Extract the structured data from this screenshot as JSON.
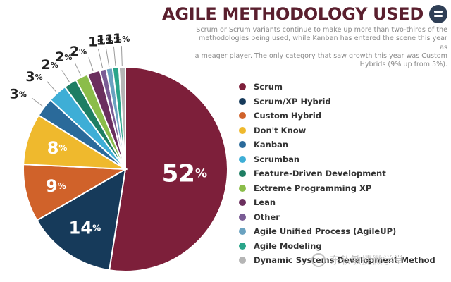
{
  "header": {
    "title": "AGILE METHODOLOGY USED",
    "subtitle_lines": [
      "Scrum or Scrum variants continue to make up more than two-thirds of the",
      "methodologies being used, while Kanban has entered the scene this year as",
      "a meager player. The only category that saw growth this year was Custom",
      "Hybrids (9% up from 5%)."
    ]
  },
  "logo_icon": "document-icon",
  "watermark": {
    "icon": "chat-bubble-icon",
    "text": "东软敏捷微学堂"
  },
  "chart_data": {
    "type": "pie",
    "title": "AGILE METHODOLOGY USED",
    "unit": "%",
    "slices": [
      {
        "label": "Scrum",
        "value": 52,
        "color": "#7d1f3a"
      },
      {
        "label": "Scrum/XP Hybrid",
        "value": 14,
        "color": "#163a5a"
      },
      {
        "label": "Custom Hybrid",
        "value": 9,
        "color": "#d0622a"
      },
      {
        "label": "Don't Know",
        "value": 8,
        "color": "#efb92d"
      },
      {
        "label": "Kanban",
        "value": 3,
        "color": "#2a6a9a"
      },
      {
        "label": "Scrumban",
        "value": 3,
        "color": "#3eaed6"
      },
      {
        "label": "Feature-Driven Development",
        "value": 2,
        "color": "#1e7e63"
      },
      {
        "label": "Extreme Programming XP",
        "value": 2,
        "color": "#8bbd4a"
      },
      {
        "label": "Lean",
        "value": 2,
        "color": "#6b2f5e"
      },
      {
        "label": "Other",
        "value": 1,
        "color": "#7a5c95"
      },
      {
        "label": "Agile Unified Process (AgileUP)",
        "value": 1,
        "color": "#6aa2c0"
      },
      {
        "label": "Agile Modeling",
        "value": 1,
        "color": "#2aa58a"
      },
      {
        "label": "Dynamic Systems Development Method",
        "value": 1,
        "color": "#b5b5b5"
      }
    ]
  }
}
